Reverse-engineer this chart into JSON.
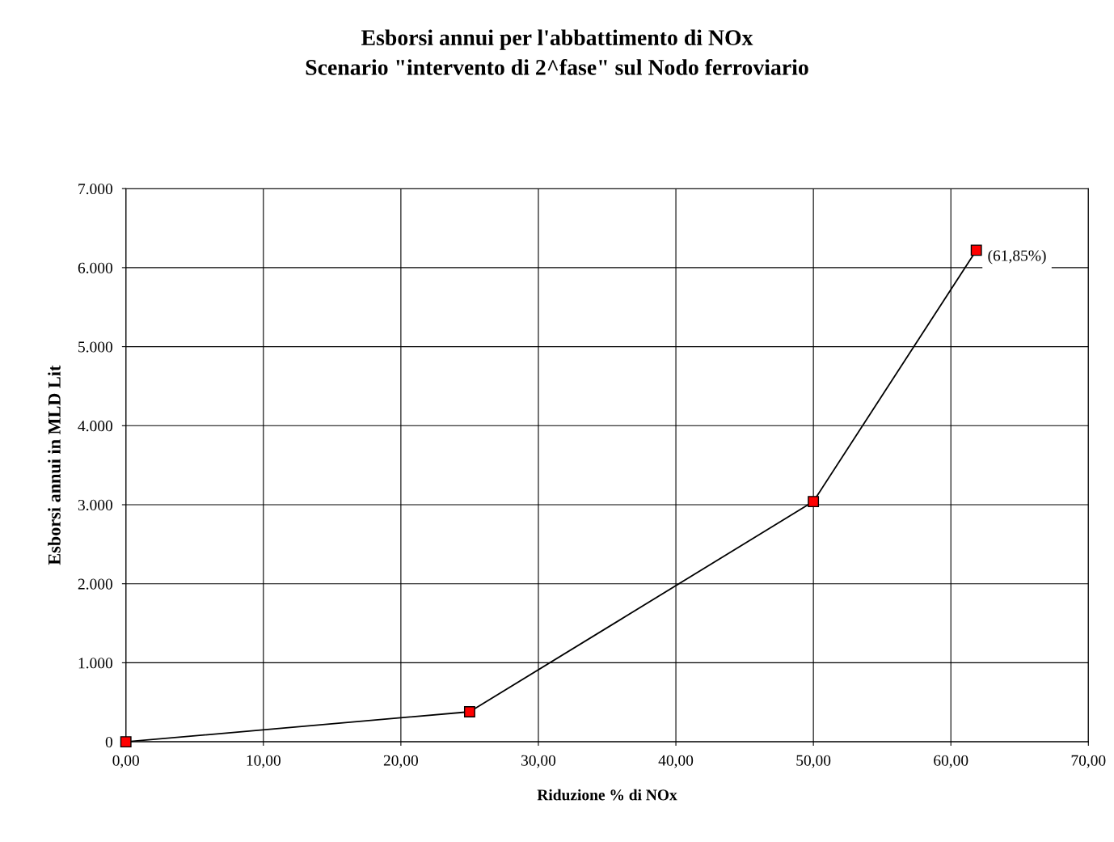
{
  "chart_data": {
    "type": "line",
    "title": "Esborsi annui per l'abbattimento di NOx\nScenario \"intervento di 2^fase\" sul Nodo ferroviario",
    "xlabel": "Riduzione % di NOx",
    "ylabel": "Esborsi annui in MLD Lit",
    "series": [
      {
        "color": "#000000",
        "x": [
          0,
          25,
          50,
          61.85
        ],
        "values": [
          0,
          380,
          3040,
          6220
        ]
      }
    ],
    "marker": "square",
    "line_style": "solid",
    "grid": true,
    "xlim": [
      0,
      70
    ],
    "ylim": [
      0,
      7000
    ],
    "xticks": [
      {
        "value": 0,
        "label": "0,00"
      },
      {
        "value": 10,
        "label": "10,00"
      },
      {
        "value": 20,
        "label": "20,00"
      },
      {
        "value": 30,
        "label": "30,00"
      },
      {
        "value": 40,
        "label": "40,00"
      },
      {
        "value": 50,
        "label": "50,00"
      },
      {
        "value": 60,
        "label": "60,00"
      },
      {
        "value": 70,
        "label": "70,00"
      }
    ],
    "yticks": [
      0,
      {
        "value": 1000,
        "label": "1.000"
      },
      {
        "value": 2000,
        "label": "2.000"
      },
      {
        "value": 3000,
        "label": "3.000"
      },
      {
        "value": 4000,
        "label": "4.000"
      },
      {
        "value": 5000,
        "label": "5.000"
      },
      {
        "value": 6000,
        "label": "6.000"
      },
      {
        "value": 7000,
        "label": "7.000"
      }
    ],
    "annotations": [
      {
        "text": "(61,85%)",
        "x": 61.85,
        "y": 6220
      }
    ]
  }
}
